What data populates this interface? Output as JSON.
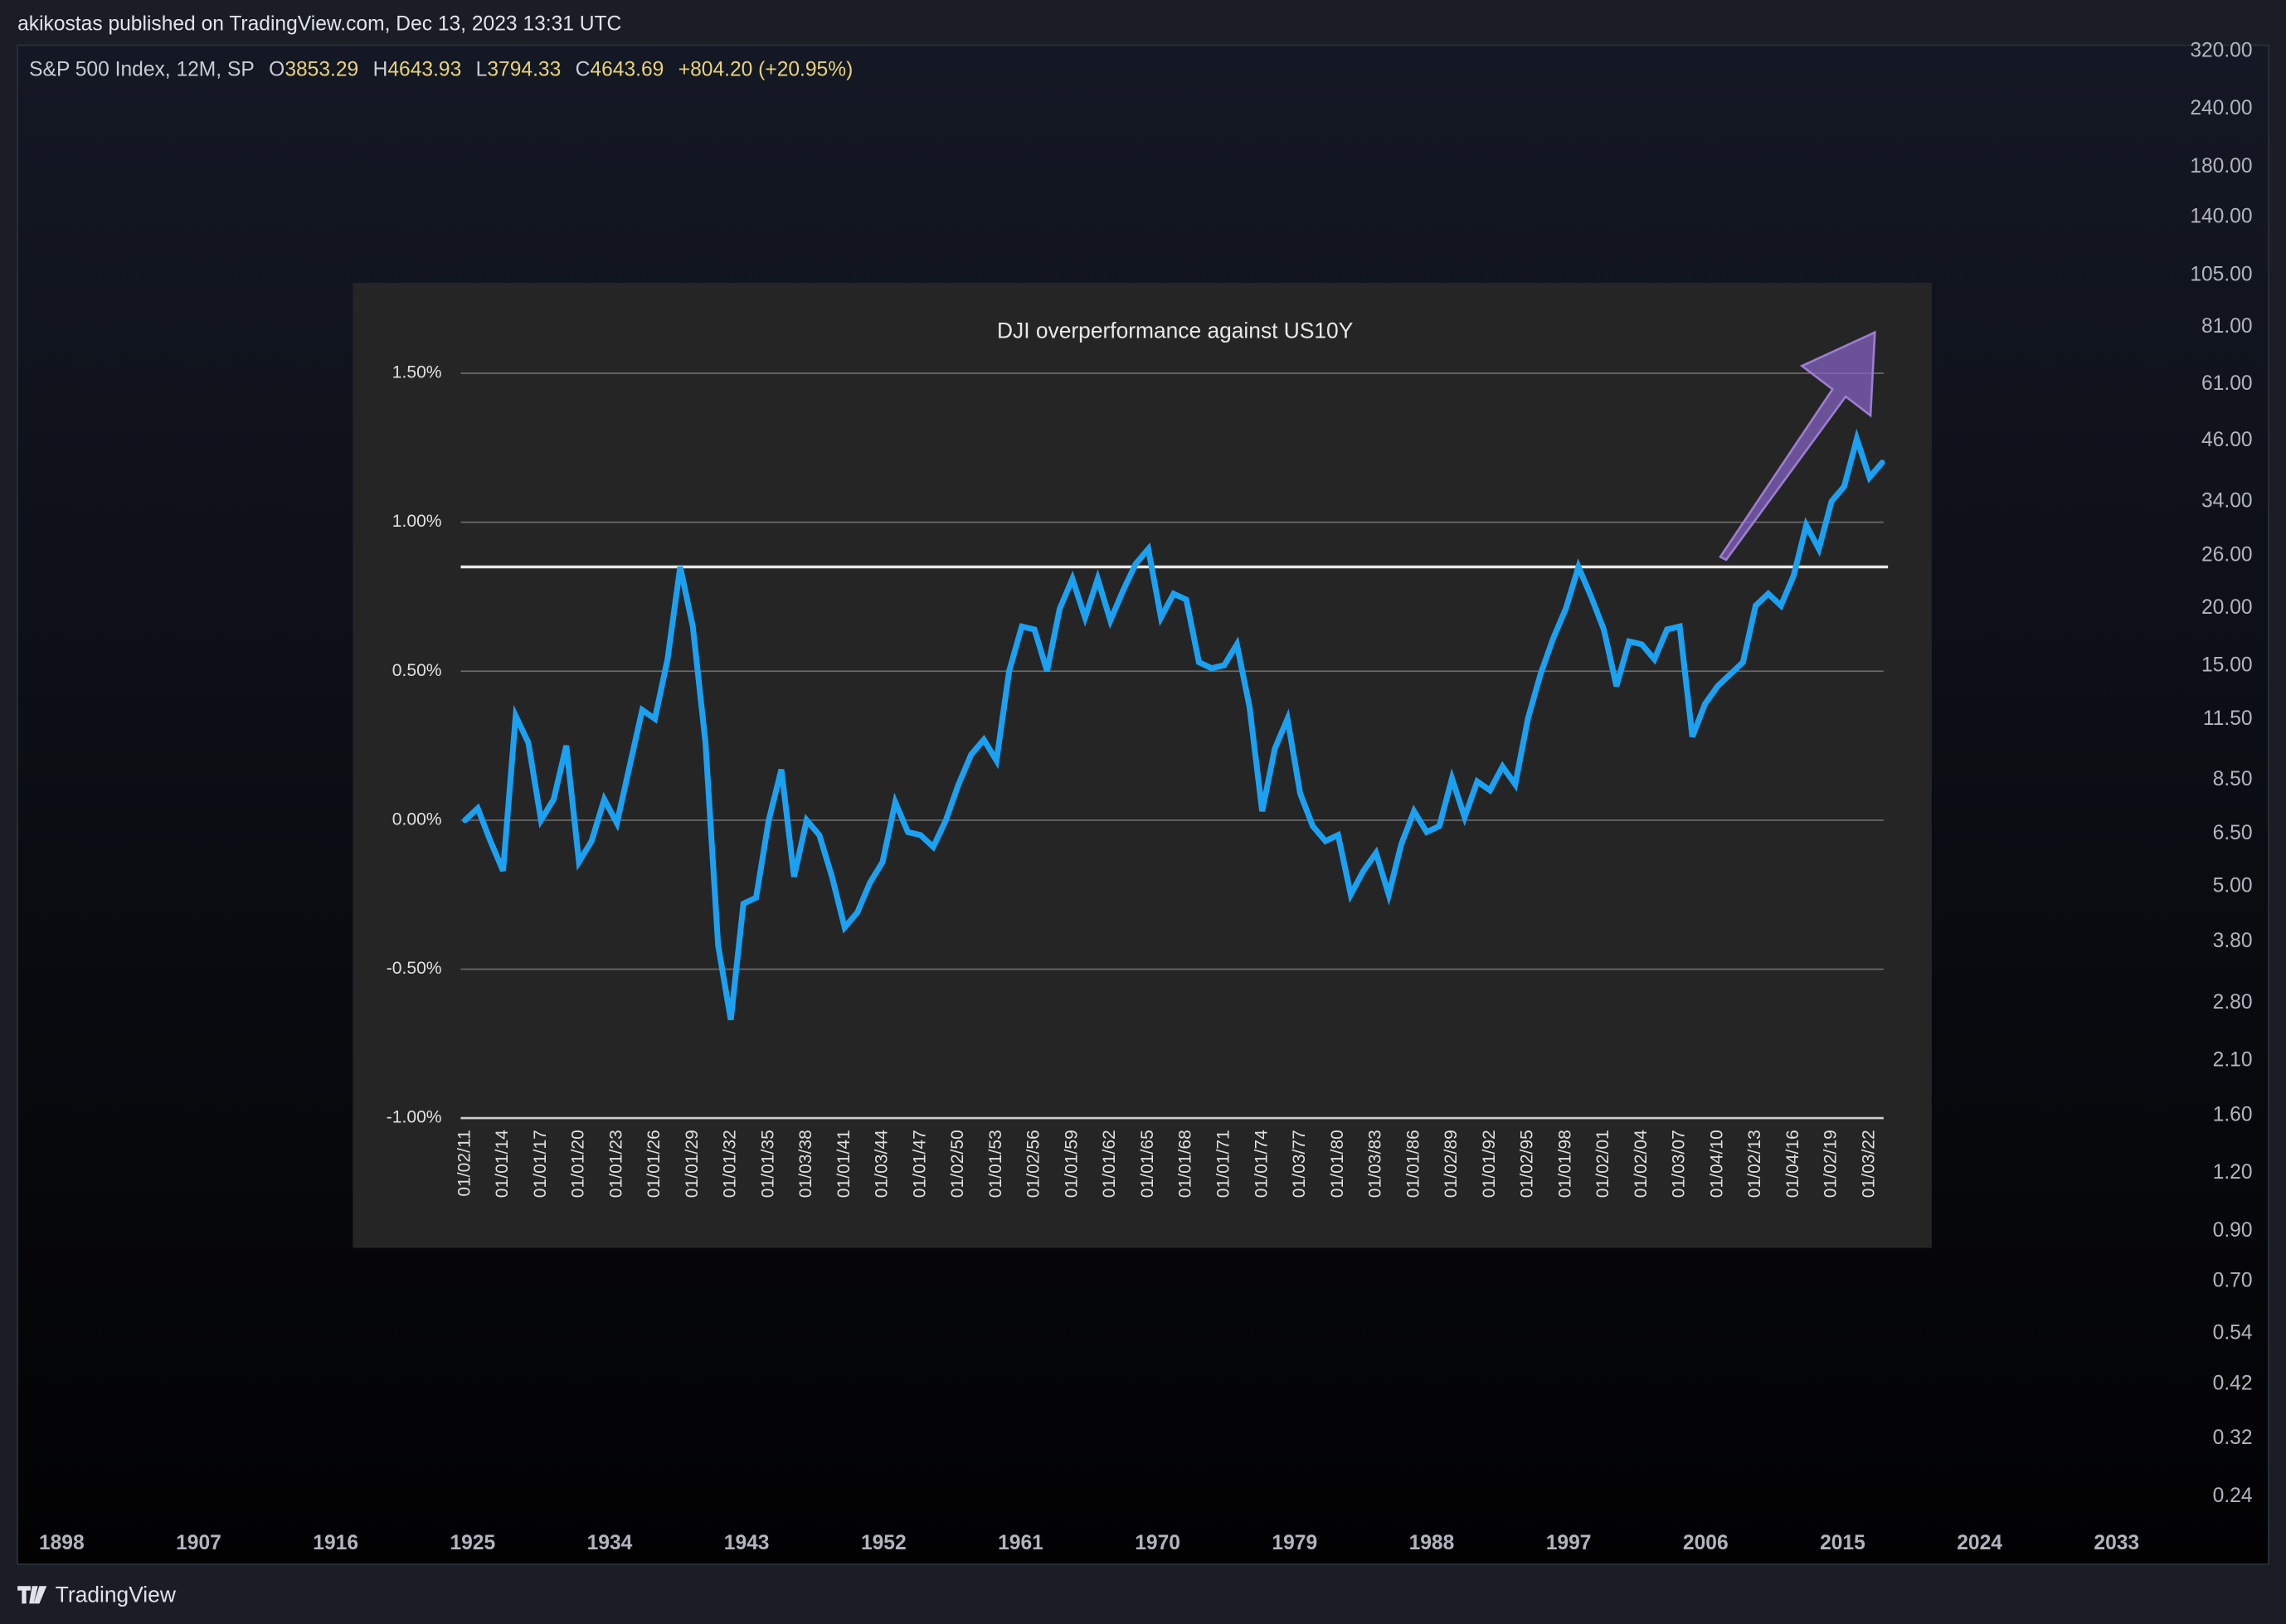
{
  "header": {
    "text": "akikostas published on TradingView.com, Dec 13, 2023 13:31 UTC"
  },
  "legend": {
    "symbol": "S&P 500 Index, 12M, SP",
    "o_label": "O",
    "o": "3853.29",
    "h_label": "H",
    "h": "4643.93",
    "l_label": "L",
    "l": "3794.33",
    "c_label": "C",
    "c": "4643.69",
    "change": "+804.20 (+20.95%)"
  },
  "tv_chart": {
    "log": true,
    "ylim": [
      0.21,
      330
    ],
    "yticks": [
      {
        "value": 320,
        "label": "320.00"
      },
      {
        "value": 240,
        "label": "240.00"
      },
      {
        "value": 180,
        "label": "180.00"
      },
      {
        "value": 140,
        "label": "140.00"
      },
      {
        "value": 105,
        "label": "105.00"
      },
      {
        "value": 81,
        "label": "81.00"
      },
      {
        "value": 61,
        "label": "61.00"
      },
      {
        "value": 46,
        "label": "46.00"
      },
      {
        "value": 34,
        "label": "34.00"
      },
      {
        "value": 26,
        "label": "26.00"
      },
      {
        "value": 20,
        "label": "20.00"
      },
      {
        "value": 15,
        "label": "15.00"
      },
      {
        "value": 11.5,
        "label": "11.50"
      },
      {
        "value": 8.5,
        "label": "8.50"
      },
      {
        "value": 6.5,
        "label": "6.50"
      },
      {
        "value": 5,
        "label": "5.00"
      },
      {
        "value": 3.8,
        "label": "3.80"
      },
      {
        "value": 2.8,
        "label": "2.80"
      },
      {
        "value": 2.1,
        "label": "2.10"
      },
      {
        "value": 1.6,
        "label": "1.60"
      },
      {
        "value": 1.2,
        "label": "1.20"
      },
      {
        "value": 0.9,
        "label": "0.90"
      },
      {
        "value": 0.7,
        "label": "0.70"
      },
      {
        "value": 0.54,
        "label": "0.54"
      },
      {
        "value": 0.42,
        "label": "0.42"
      },
      {
        "value": 0.32,
        "label": "0.32"
      },
      {
        "value": 0.24,
        "label": "0.24"
      }
    ],
    "xlim": [
      1895.1,
      2035.7
    ],
    "xticks": [
      1898,
      1907,
      1916,
      1925,
      1934,
      1943,
      1952,
      1961,
      1970,
      1979,
      1988,
      1997,
      2006,
      2015,
      2024,
      2033
    ]
  },
  "chart_data": {
    "type": "line",
    "title": "DJI overperformance against US10Y",
    "color": "#1ba1f2",
    "ylim": [
      -1,
      1.5
    ],
    "yticks": [
      {
        "value": 1.5,
        "label": "1.50%"
      },
      {
        "value": 1,
        "label": "1.00%"
      },
      {
        "value": 0.5,
        "label": "0.50%"
      },
      {
        "value": 0,
        "label": "0.00%"
      },
      {
        "value": -0.5,
        "label": "-0.50%"
      },
      {
        "value": -1,
        "label": "-1.00%"
      }
    ],
    "grid": true,
    "hline": 0.85,
    "categories": [
      "01/02/11",
      null,
      null,
      "01/01/14",
      null,
      null,
      "01/01/17",
      null,
      null,
      "01/01/20",
      null,
      null,
      "01/01/23",
      null,
      null,
      "01/01/26",
      null,
      null,
      "01/01/29",
      null,
      null,
      "01/01/32",
      null,
      null,
      "01/01/35",
      null,
      null,
      "01/03/38",
      null,
      null,
      "01/01/41",
      null,
      null,
      "01/03/44",
      null,
      null,
      "01/01/47",
      null,
      null,
      "01/02/50",
      null,
      null,
      "01/01/53",
      null,
      null,
      "01/02/56",
      null,
      null,
      "01/01/59",
      null,
      null,
      "01/01/62",
      null,
      null,
      "01/01/65",
      null,
      null,
      "01/01/68",
      null,
      null,
      "01/01/71",
      null,
      null,
      "01/01/74",
      null,
      null,
      "01/03/77",
      null,
      null,
      "01/01/80",
      null,
      null,
      "01/03/83",
      null,
      null,
      "01/01/86",
      null,
      null,
      "01/02/89",
      null,
      null,
      "01/01/92",
      null,
      null,
      "01/02/95",
      null,
      null,
      "01/01/98",
      null,
      null,
      "01/02/01",
      null,
      null,
      "01/02/04",
      null,
      null,
      "01/03/07",
      null,
      null,
      "01/04/10",
      null,
      null,
      "01/02/13",
      null,
      null,
      "01/04/16",
      null,
      null,
      "01/02/19",
      null,
      null,
      "01/03/22",
      null
    ],
    "values": [
      0.0,
      0.04,
      -0.07,
      -0.17,
      0.35,
      0.26,
      0.0,
      0.07,
      0.25,
      -0.14,
      -0.07,
      0.07,
      -0.01,
      0.18,
      0.37,
      0.34,
      0.54,
      0.85,
      0.65,
      0.26,
      -0.42,
      -0.67,
      -0.28,
      -0.26,
      0.0,
      0.17,
      -0.19,
      0.0,
      -0.05,
      -0.19,
      -0.36,
      -0.31,
      -0.21,
      -0.14,
      0.06,
      -0.04,
      -0.05,
      -0.09,
      0.0,
      0.12,
      0.22,
      0.27,
      0.2,
      0.5,
      0.65,
      0.64,
      0.5,
      0.71,
      0.81,
      0.68,
      0.81,
      0.67,
      0.77,
      0.86,
      0.91,
      0.68,
      0.76,
      0.74,
      0.53,
      0.51,
      0.52,
      0.59,
      0.38,
      0.03,
      0.24,
      0.34,
      0.09,
      -0.02,
      -0.07,
      -0.05,
      -0.25,
      -0.17,
      -0.11,
      -0.25,
      -0.08,
      0.03,
      -0.04,
      -0.02,
      0.14,
      0.01,
      0.13,
      0.1,
      0.18,
      0.12,
      0.34,
      0.49,
      0.61,
      0.71,
      0.85,
      0.75,
      0.64,
      0.45,
      0.6,
      0.59,
      0.54,
      0.64,
      0.65,
      0.28,
      0.39,
      0.45,
      0.49,
      0.53,
      0.72,
      0.76,
      0.72,
      0.82,
      0.99,
      0.91,
      1.07,
      1.12,
      1.28,
      1.15,
      1.2
    ]
  },
  "footer": {
    "brand": "TradingView"
  }
}
